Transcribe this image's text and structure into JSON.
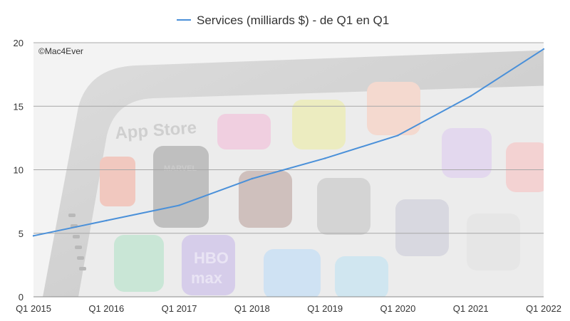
{
  "chart_data": {
    "type": "line",
    "title": "",
    "xlabel": "",
    "ylabel": "",
    "watermark": "©Mac4Ever",
    "categories": [
      "Q1 2015",
      "Q1 2016",
      "Q1 2017",
      "Q1 2018",
      "Q1 2019",
      "Q1 2020",
      "Q1 2021",
      "Q1 2022"
    ],
    "series": [
      {
        "name": "Services (milliards $) - de Q1 en Q1",
        "color": "#4a90d9",
        "values": [
          4.8,
          6.0,
          7.2,
          9.3,
          10.9,
          12.7,
          15.8,
          19.5
        ]
      }
    ],
    "ylim": [
      0,
      20
    ],
    "yticks": [
      0,
      5,
      10,
      15,
      20
    ],
    "grid": true,
    "legend": "top-center",
    "background": "faded App Store phone photo",
    "background_texts": [
      "App Store",
      "MARVEL",
      "HBO",
      "max"
    ]
  }
}
